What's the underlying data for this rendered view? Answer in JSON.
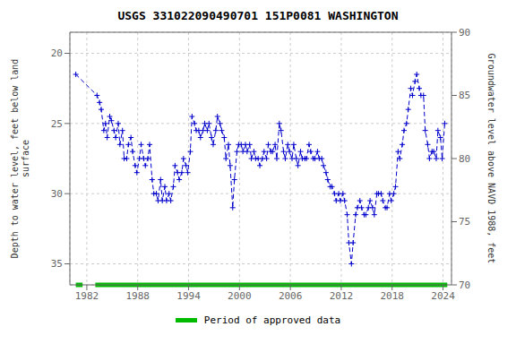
{
  "chart_data": {
    "type": "line",
    "title": "USGS 331022090490701 151P0081 WASHINGTON",
    "ylabel": "Depth to water level, feet below land\nsurface",
    "y2label": "Groundwater level above NAVD 1988, feet",
    "xlim": [
      1980,
      2025
    ],
    "xticks": [
      1982,
      1988,
      1994,
      2000,
      2006,
      2012,
      2018,
      2024
    ],
    "ylim": [
      36.5,
      18.5
    ],
    "yticks": [
      20,
      25,
      30,
      35
    ],
    "y2lim": [
      70,
      90
    ],
    "y2ticks": [
      70,
      75,
      80,
      85,
      90
    ],
    "color": "#0000cc",
    "marker": "plus",
    "line_style": "dashed",
    "grid": true,
    "legend": "bottom",
    "x": [
      1980.7,
      1983.2,
      1983.5,
      1983.7,
      1984.0,
      1984.2,
      1984.4,
      1984.7,
      1984.9,
      1985.2,
      1985.4,
      1985.7,
      1985.9,
      1986.2,
      1986.4,
      1986.7,
      1986.9,
      1987.2,
      1987.4,
      1987.7,
      1987.9,
      1988.2,
      1988.4,
      1988.7,
      1988.9,
      1989.2,
      1989.4,
      1989.7,
      1989.9,
      1990.2,
      1990.4,
      1990.7,
      1990.9,
      1991.2,
      1991.4,
      1991.7,
      1991.9,
      1992.2,
      1992.4,
      1992.7,
      1992.9,
      1993.2,
      1993.4,
      1993.7,
      1993.9,
      1994.2,
      1994.4,
      1994.7,
      1994.9,
      1995.2,
      1995.4,
      1995.7,
      1995.9,
      1996.2,
      1996.4,
      1996.7,
      1996.9,
      1997.2,
      1997.4,
      1997.7,
      1997.9,
      1998.2,
      1998.4,
      1998.7,
      1998.9,
      1999.2,
      1999.4,
      1999.7,
      1999.9,
      2000.2,
      2000.4,
      2000.7,
      2000.9,
      2001.2,
      2001.4,
      2001.7,
      2001.9,
      2002.2,
      2002.4,
      2002.7,
      2002.9,
      2003.2,
      2003.4,
      2003.7,
      2003.9,
      2004.2,
      2004.4,
      2004.7,
      2004.9,
      2005.2,
      2005.4,
      2005.7,
      2005.9,
      2006.2,
      2006.4,
      2006.7,
      2006.9,
      2007.2,
      2007.4,
      2007.7,
      2007.9,
      2008.2,
      2008.4,
      2008.7,
      2008.9,
      2009.2,
      2009.4,
      2009.7,
      2009.9,
      2010.2,
      2010.4,
      2010.7,
      2010.9,
      2011.2,
      2011.4,
      2011.7,
      2011.9,
      2012.2,
      2012.4,
      2012.7,
      2012.9,
      2013.2,
      2013.4,
      2013.7,
      2013.9,
      2014.2,
      2014.4,
      2014.7,
      2014.9,
      2015.2,
      2015.4,
      2015.7,
      2015.9,
      2016.2,
      2016.4,
      2016.7,
      2016.9,
      2017.2,
      2017.4,
      2017.7,
      2017.9,
      2018.2,
      2018.4,
      2018.7,
      2018.9,
      2019.2,
      2019.4,
      2019.7,
      2019.9,
      2020.2,
      2020.4,
      2020.7,
      2020.9,
      2021.2,
      2021.4,
      2021.7,
      2021.9,
      2022.2,
      2022.4,
      2022.7,
      2022.9,
      2023.2,
      2023.4,
      2023.7,
      2023.9,
      2024.2
    ],
    "values": [
      21.5,
      23.0,
      23.5,
      24.0,
      25.5,
      25.0,
      26.0,
      24.5,
      24.8,
      25.5,
      26.0,
      25.0,
      26.5,
      25.5,
      27.5,
      27.5,
      26.5,
      26.0,
      27.0,
      28.0,
      28.5,
      27.5,
      26.5,
      27.5,
      28.0,
      27.5,
      26.5,
      29.0,
      30.0,
      30.0,
      30.5,
      29.0,
      30.5,
      29.5,
      30.5,
      30.0,
      30.5,
      29.5,
      28.0,
      28.5,
      29.0,
      28.5,
      27.5,
      28.0,
      28.5,
      27.0,
      24.5,
      25.0,
      25.5,
      25.5,
      26.0,
      25.5,
      25.0,
      25.5,
      25.0,
      26.0,
      26.5,
      25.5,
      24.5,
      25.0,
      25.5,
      26.0,
      27.5,
      26.5,
      28.0,
      31.0,
      29.0,
      27.0,
      26.5,
      26.5,
      27.0,
      26.5,
      27.0,
      26.5,
      27.5,
      27.0,
      27.5,
      27.5,
      28.0,
      27.5,
      27.0,
      27.5,
      26.5,
      27.0,
      27.0,
      26.5,
      27.5,
      25.0,
      25.5,
      27.0,
      27.5,
      26.5,
      27.0,
      27.5,
      26.5,
      27.5,
      28.0,
      27.0,
      27.5,
      27.5,
      27.5,
      26.5,
      27.0,
      27.5,
      27.5,
      27.0,
      27.5,
      27.5,
      28.0,
      28.5,
      29.0,
      29.5,
      29.5,
      30.0,
      30.5,
      30.0,
      30.5,
      30.0,
      30.5,
      31.5,
      33.5,
      35.0,
      33.5,
      31.5,
      31.0,
      30.5,
      31.0,
      31.5,
      31.5,
      31.0,
      30.5,
      31.0,
      31.5,
      30.0,
      30.0,
      30.0,
      30.5,
      31.0,
      31.0,
      30.0,
      30.5,
      30.0,
      29.5,
      27.0,
      27.5,
      26.5,
      25.5,
      25.0,
      24.0,
      22.5,
      23.0,
      22.0,
      21.5,
      22.5,
      23.0,
      23.0,
      25.5,
      26.5,
      27.5,
      27.0,
      27.0,
      27.5,
      25.5,
      26.0,
      27.5,
      25.0
    ],
    "approved_segments": [
      [
        1980.7,
        1981.5
      ],
      [
        1983.0,
        2024.5
      ]
    ],
    "approved_label": "Period of approved data",
    "approved_color": "#00bb00"
  }
}
